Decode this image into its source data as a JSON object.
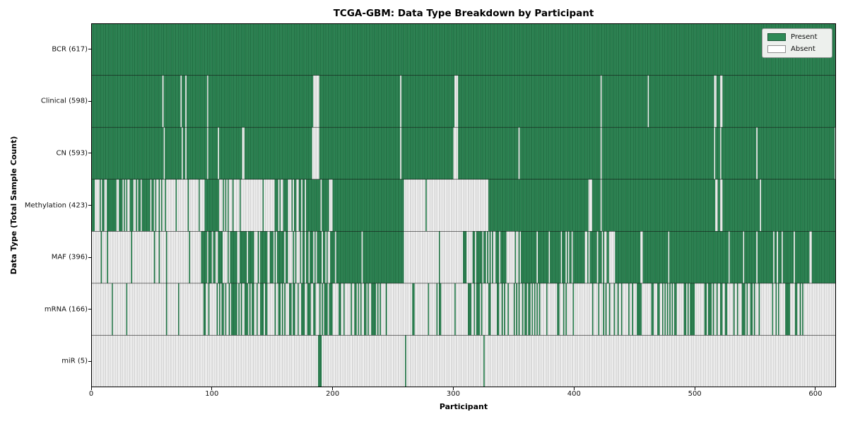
{
  "chart": {
    "title": "TCGA-GBM: Data Type Breakdown by Participant",
    "xlabel": "Participant",
    "ylabel": "Data Type (Total Sample Count)"
  },
  "legend": {
    "items": [
      {
        "label": "Present",
        "color": "#2e8b57",
        "edge": "#1a5434"
      },
      {
        "label": "Absent",
        "color": "#ffffff",
        "edge": "#8f8f8f"
      }
    ],
    "background": "#edf0ed",
    "border": "#9a9a9a"
  },
  "colors": {
    "present": "#2e8b57",
    "present_edge": "#17502f",
    "absent": "#ffffff",
    "absent_edge": "#989898",
    "row_separator": "#0d0d0d",
    "axis": "#000000",
    "tick_text": "#111111"
  },
  "axes": {
    "x_ticks": [
      0,
      100,
      200,
      300,
      400,
      500,
      600
    ],
    "n_participants": 617
  },
  "chart_data": {
    "type": "heatmap",
    "title": "TCGA-GBM: Data Type Breakdown by Participant",
    "xlabel": "Participant",
    "ylabel": "Data Type (Total Sample Count)",
    "x_range": [
      0,
      617
    ],
    "legend": [
      "Present",
      "Absent"
    ],
    "legend_position": "upper right",
    "rows": [
      {
        "name": "BCR",
        "label": "BCR (617)",
        "total": 617,
        "presence": {
          "absent": []
        }
      },
      {
        "name": "Clinical",
        "label": "Clinical (598)",
        "total": 598,
        "presence": {
          "absent": [
            59,
            74,
            78,
            96,
            184,
            185,
            186,
            187,
            188,
            256,
            301,
            302,
            303,
            422,
            461,
            516,
            517,
            521,
            522
          ]
        }
      },
      {
        "name": "CN",
        "label": "CN (593)",
        "total": 593,
        "presence": {
          "absent": [
            60,
            75,
            78,
            96,
            105,
            125,
            126,
            183,
            184,
            185,
            186,
            187,
            188,
            256,
            300,
            301,
            302,
            303,
            354,
            422,
            516,
            521,
            551,
            616
          ]
        }
      },
      {
        "name": "Methylation",
        "label": "Methylation (423)",
        "total": 423,
        "presence": {
          "segments": [
            [
              0,
              60,
              0.6
            ],
            [
              60,
              94,
              0.28
            ],
            [
              94,
              106,
              1
            ],
            [
              106,
              138,
              0.3
            ],
            [
              138,
              177,
              0.48
            ],
            [
              177,
              197,
              0.85
            ],
            [
              197,
              200,
              0
            ],
            [
              200,
              259,
              1
            ],
            [
              259,
              329,
              0.015
            ],
            [
              329,
              617,
              1
            ]
          ],
          "absent_extra": [
            412,
            413,
            414,
            422,
            517,
            518,
            521,
            522,
            554
          ]
        }
      },
      {
        "name": "MAF",
        "label": "MAF (396)",
        "total": 396,
        "presence": {
          "segments": [
            [
              0,
              8,
              0.02
            ],
            [
              8,
              90,
              0.06
            ],
            [
              90,
              196,
              0.65
            ],
            [
              196,
              259,
              0.92
            ],
            [
              259,
              306,
              0.06
            ],
            [
              306,
              341,
              0.55
            ],
            [
              341,
              357,
              0.2
            ],
            [
              357,
              422,
              0.85
            ],
            [
              422,
              438,
              0.5
            ],
            [
              438,
              617,
              0.94
            ]
          ]
        }
      },
      {
        "name": "mRNA",
        "label": "mRNA (166)",
        "total": 166,
        "presence": {
          "segments": [
            [
              0,
              17,
              0
            ],
            [
              17,
              18,
              1
            ],
            [
              18,
              29,
              0
            ],
            [
              29,
              30,
              1
            ],
            [
              30,
              91,
              0.02
            ],
            [
              91,
              240,
              0.45
            ],
            [
              240,
              306,
              0.1
            ],
            [
              306,
              422,
              0.25
            ],
            [
              422,
              590,
              0.35
            ],
            [
              590,
              617,
              0.08
            ]
          ]
        }
      },
      {
        "name": "miR",
        "label": "miR (5)",
        "total": 5,
        "presence": {
          "present": [
            188,
            189,
            190,
            260,
            325
          ]
        }
      }
    ]
  }
}
